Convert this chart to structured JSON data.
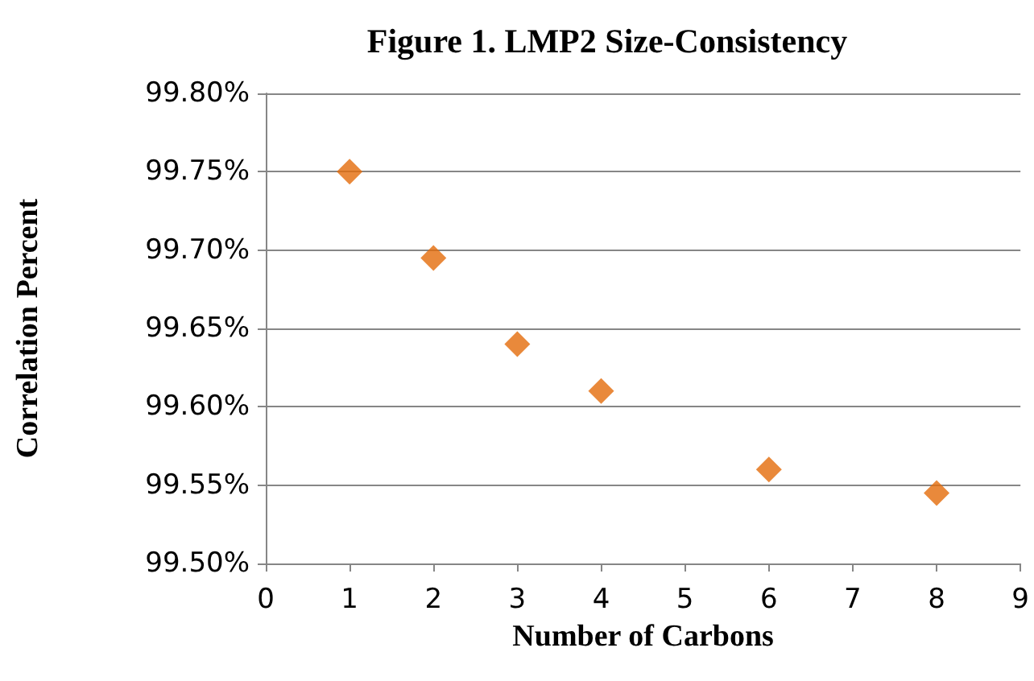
{
  "chart_data": {
    "type": "scatter",
    "title": "Figure 1. LMP2 Size-Consistency",
    "xlabel": "Number of Carbons",
    "ylabel": "Correlation Percent",
    "x": [
      1,
      2,
      3,
      4,
      6,
      8
    ],
    "series": [
      {
        "color": "#e46c0a",
        "values": [
          99.75,
          99.695,
          99.64,
          99.61,
          99.56,
          99.545
        ]
      }
    ],
    "xlim": [
      0,
      9
    ],
    "xticks": [
      0,
      1,
      2,
      3,
      4,
      5,
      6,
      7,
      8,
      9
    ],
    "ylim": [
      99.5,
      99.8
    ],
    "yticks": [
      {
        "value": 99.5,
        "label": "99.50%"
      },
      {
        "value": 99.55,
        "label": "99.55%"
      },
      {
        "value": 99.6,
        "label": "99.60%"
      },
      {
        "value": 99.65,
        "label": "99.65%"
      },
      {
        "value": 99.7,
        "label": "99.70%"
      },
      {
        "value": 99.75,
        "label": "99.75%"
      },
      {
        "value": 99.8,
        "label": "99.80%"
      }
    ],
    "grid": "y",
    "marker": "diamond"
  }
}
